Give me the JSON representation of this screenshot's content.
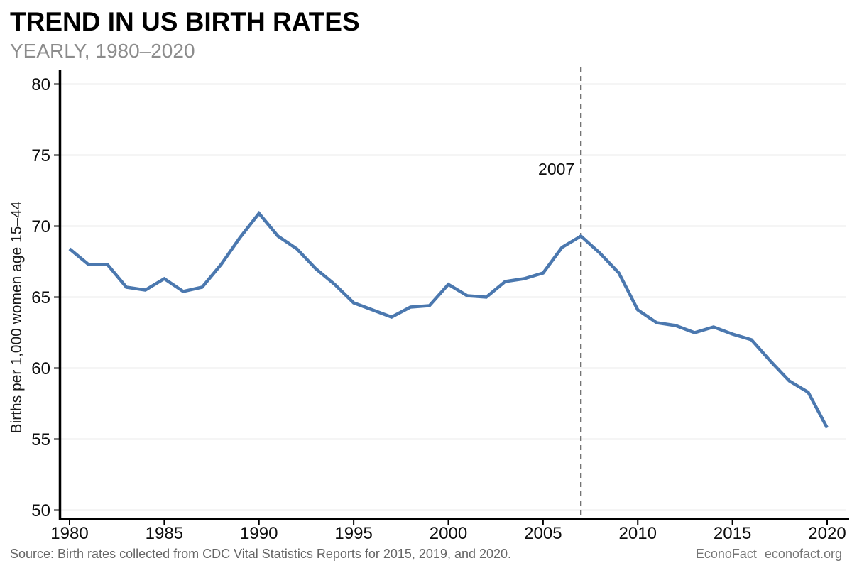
{
  "chart_data": {
    "type": "line",
    "title": "TREND IN US BIRTH RATES",
    "subtitle": "YEARLY, 1980–2020",
    "ylabel": "Births per 1,000 women age 15–44",
    "xlabel": "",
    "ylim": [
      50,
      80
    ],
    "xlim": [
      1980,
      2020
    ],
    "yticks": [
      50,
      55,
      60,
      65,
      70,
      75,
      80
    ],
    "xticks": [
      1980,
      1985,
      1990,
      1995,
      2000,
      2005,
      2010,
      2015,
      2020
    ],
    "grid": "horizontal",
    "legend": "none",
    "line_color": "#4b78af",
    "series": [
      {
        "name": "US birth rate",
        "x": [
          1980,
          1981,
          1982,
          1983,
          1984,
          1985,
          1986,
          1987,
          1988,
          1989,
          1990,
          1991,
          1992,
          1993,
          1994,
          1995,
          1996,
          1997,
          1998,
          1999,
          2000,
          2001,
          2002,
          2003,
          2004,
          2005,
          2006,
          2007,
          2008,
          2009,
          2010,
          2011,
          2012,
          2013,
          2014,
          2015,
          2016,
          2017,
          2018,
          2019,
          2020
        ],
        "values": [
          68.4,
          67.3,
          67.3,
          65.7,
          65.5,
          66.3,
          65.4,
          65.7,
          67.3,
          69.2,
          70.9,
          69.3,
          68.4,
          67.0,
          65.9,
          64.6,
          64.1,
          63.6,
          64.3,
          64.4,
          65.9,
          65.1,
          65.0,
          66.1,
          66.3,
          66.7,
          68.5,
          69.3,
          68.1,
          66.7,
          64.1,
          63.2,
          63.0,
          62.5,
          62.9,
          62.4,
          62.0,
          60.5,
          59.1,
          58.3,
          55.8
        ]
      }
    ],
    "annotation": {
      "label": "2007",
      "x": 2007,
      "style": "dashed-vertical-line",
      "color": "#4d4d4d"
    }
  },
  "footer": {
    "source": "Source: Birth rates collected from CDC Vital Statistics Reports for 2015, 2019, and 2020.",
    "brand": "EconoFact",
    "site": "econofact.org"
  }
}
